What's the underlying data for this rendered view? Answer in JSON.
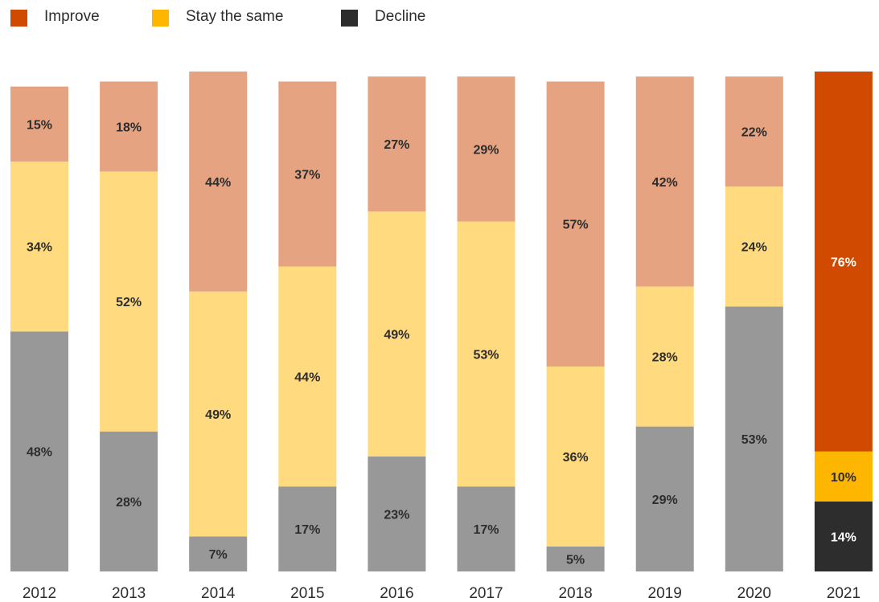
{
  "legend": {
    "items": [
      {
        "label": "Improve",
        "color": "#d04a02"
      },
      {
        "label": "Stay the same",
        "color": "#ffb600"
      },
      {
        "label": "Decline",
        "color": "#2d2d2d"
      }
    ]
  },
  "chart_data": {
    "type": "bar",
    "stacked": true,
    "orientation": "vertical",
    "value_format": "percent",
    "ylim": [
      0,
      100
    ],
    "grid": false,
    "legend_position": "top-left",
    "title": "",
    "xlabel": "",
    "ylabel": "",
    "categories": [
      "2012",
      "2013",
      "2014",
      "2015",
      "2016",
      "2017",
      "2018",
      "2019",
      "2020",
      "2021"
    ],
    "series": [
      {
        "name": "Improve",
        "values": [
          15,
          18,
          44,
          37,
          27,
          29,
          57,
          42,
          22,
          76
        ]
      },
      {
        "name": "Stay the same",
        "values": [
          34,
          52,
          49,
          44,
          49,
          53,
          36,
          28,
          24,
          10
        ]
      },
      {
        "name": "Decline",
        "values": [
          48,
          28,
          7,
          17,
          23,
          17,
          5,
          29,
          53,
          14
        ]
      }
    ],
    "colors": {
      "muted": {
        "Improve": "#e5a382",
        "Stay the same": "#ffda7f",
        "Decline": "#989898"
      },
      "highlight": {
        "Improve": "#d04a02",
        "Stay the same": "#ffb600",
        "Decline": "#2d2d2d"
      },
      "highlight_category": "2021",
      "label_dark": "#2d2d2d",
      "label_light": "#ffffff",
      "axis_text": "#2d2d2d"
    }
  }
}
